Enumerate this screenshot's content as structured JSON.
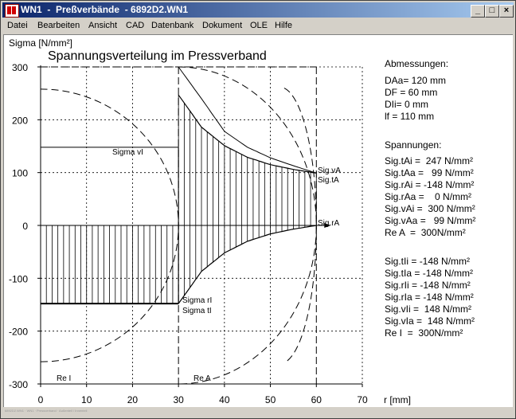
{
  "window": {
    "title": "WN1  -  Preßverbände  - 6892D2.WN1",
    "min_glyph": "_",
    "max_glyph": "□",
    "close_glyph": "×"
  },
  "menu": [
    "Datei",
    "Bearbeiten",
    "Ansicht",
    "CAD",
    "Datenbank",
    "Dokument",
    "OLE",
    "Hilfe"
  ],
  "plot": {
    "title": "Spannungsverteilung im Pressverband",
    "ylabel": "Sigma [N/mm²]",
    "xlabel": "r [mm]",
    "sigma_vi_label": "Sigma vI",
    "sigma_ri_label": "Sigma rI",
    "sigma_ti_label": "Sigma tI",
    "sig_va_label": "Sig.vA",
    "sig_ta_label": "Sig.tA",
    "sig_ra_label": "Sig.rA",
    "re_i_label": "Re I",
    "re_a_label": "Re A"
  },
  "chart_data": {
    "type": "line",
    "title": "Spannungsverteilung im Pressverband",
    "xlabel": "r [mm]",
    "ylabel": "Sigma [N/mm²]",
    "xlim": [
      0,
      70
    ],
    "ylim": [
      -300,
      300
    ],
    "xticks": [
      0,
      10,
      20,
      30,
      40,
      50,
      60,
      70
    ],
    "yticks": [
      300,
      200,
      100,
      0,
      -100,
      -200,
      -300
    ],
    "grid": true,
    "vertical_lines_at": [
      30,
      60
    ],
    "inner_part": {
      "r_range": [
        0,
        30
      ],
      "sigma_t": -148,
      "sigma_r": -148,
      "sigma_v": 148,
      "Re": 300
    },
    "outer_part": {
      "r_range": [
        30,
        60
      ],
      "sigma_t": {
        "r": [
          30,
          35,
          40,
          45,
          50,
          55,
          60
        ],
        "value": [
          247,
          186,
          151,
          129,
          115,
          106,
          99
        ]
      },
      "sigma_r": {
        "r": [
          30,
          35,
          40,
          45,
          50,
          55,
          60
        ],
        "value": [
          -148,
          -87,
          -52,
          -30,
          -16,
          -7,
          0
        ]
      },
      "sigma_v": {
        "r": [
          30,
          35,
          40,
          45,
          50,
          55,
          60
        ],
        "value": [
          300,
          240,
          178,
          148,
          128,
          113,
          99
        ]
      },
      "Re": 300
    }
  },
  "panel": {
    "abmessungen": {
      "heading": "Abmessungen:",
      "lines": [
        "DAa= 120 mm",
        "DF = 60 mm",
        "DIi= 0 mm",
        "lf = 110 mm"
      ]
    },
    "spannungen": {
      "heading": "Spannungen:",
      "outer": [
        "Sig.tAi =  247 N/mm²",
        "Sig.tAa =   99 N/mm²",
        "Sig.rAi = -148 N/mm²",
        "Sig.rAa =    0 N/mm²",
        "Sig.vAi =  300 N/mm²",
        "Sig.vAa =   99 N/mm²",
        "Re A  =  300N/mm²"
      ],
      "inner": [
        "Sig.tIi = -148 N/mm²",
        "Sig.tIa = -148 N/mm²",
        "Sig.rIi = -148 N/mm²",
        "Sig.rIa = -148 N/mm²",
        "Sig.vIi =  148 N/mm²",
        "Sig.vIa =  148 N/mm²",
        "Re I  =  300N/mm²"
      ]
    }
  },
  "status": {
    "text": "6892D2.WN1 · WN1 · Pressverband · Außenteil / Innenteil"
  }
}
